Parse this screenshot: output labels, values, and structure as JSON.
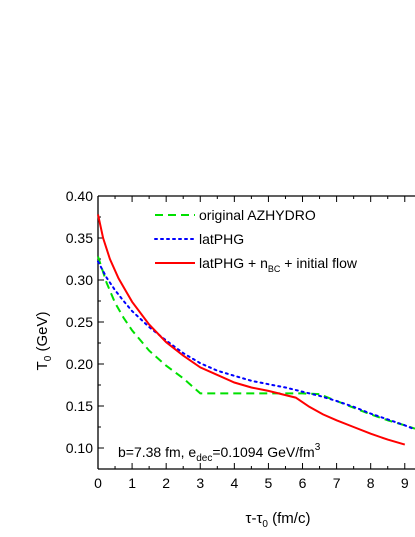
{
  "chart_data": {
    "type": "line",
    "x_axis": {
      "label_main": "τ-τ",
      "label_sub": "0",
      "label_tail": " (fm/c)",
      "range": [
        0,
        9.3
      ],
      "ticks": [
        0,
        1,
        2,
        3,
        4,
        5,
        6,
        7,
        8,
        9
      ],
      "tick_labels": [
        "0",
        "1",
        "2",
        "3",
        "4",
        "5",
        "6",
        "7",
        "8",
        "9"
      ]
    },
    "y_axis": {
      "label_main": "T",
      "label_sub": "0",
      "label_tail": " (GeV)",
      "range": [
        0.075,
        0.4
      ],
      "ticks": [
        0.1,
        0.15,
        0.2,
        0.25,
        0.3,
        0.35,
        0.4
      ],
      "tick_labels": [
        "0.10",
        "0.15",
        "0.20",
        "0.25",
        "0.30",
        "0.35",
        "0.40"
      ]
    },
    "grid": false,
    "legend_position": "top-right",
    "series": [
      {
        "name": "original AZHYDRO",
        "color": "#00e000",
        "style": "dashed",
        "x": [
          0,
          0.25,
          0.5,
          0.75,
          1.0,
          1.5,
          2.0,
          2.5,
          3.0,
          3.5,
          4.0,
          4.5,
          5.0,
          5.5,
          6.0,
          6.5,
          7.0,
          7.5,
          8.0,
          8.5,
          9.0,
          9.3
        ],
        "y": [
          0.328,
          0.297,
          0.273,
          0.255,
          0.24,
          0.216,
          0.198,
          0.183,
          0.165,
          0.165,
          0.165,
          0.165,
          0.165,
          0.165,
          0.165,
          0.164,
          0.156,
          0.148,
          0.14,
          0.133,
          0.127,
          0.123
        ]
      },
      {
        "name": "latPHG",
        "color": "#0000ff",
        "style": "dotted",
        "x": [
          0,
          0.25,
          0.5,
          0.75,
          1.0,
          1.5,
          2.0,
          2.5,
          3.0,
          3.5,
          4.0,
          4.5,
          5.0,
          5.5,
          6.0,
          6.5,
          7.0,
          7.5,
          8.0,
          8.5,
          9.0,
          9.3
        ],
        "y": [
          0.322,
          0.303,
          0.288,
          0.275,
          0.263,
          0.244,
          0.228,
          0.213,
          0.201,
          0.192,
          0.186,
          0.18,
          0.176,
          0.172,
          0.167,
          0.162,
          0.156,
          0.149,
          0.141,
          0.134,
          0.127,
          0.122
        ]
      },
      {
        "name": "latPHG + n_BC + initial flow",
        "color": "#ff0000",
        "style": "solid",
        "x": [
          0,
          0.15,
          0.35,
          0.6,
          1.0,
          1.5,
          2.0,
          2.5,
          3.0,
          3.5,
          4.0,
          4.5,
          5.0,
          5.5,
          5.8,
          6.2,
          6.6,
          7.0,
          7.5,
          8.0,
          8.5,
          9.0
        ],
        "y": [
          0.378,
          0.35,
          0.325,
          0.302,
          0.274,
          0.247,
          0.226,
          0.21,
          0.196,
          0.187,
          0.178,
          0.172,
          0.168,
          0.163,
          0.16,
          0.149,
          0.14,
          0.133,
          0.125,
          0.117,
          0.11,
          0.104
        ]
      }
    ],
    "legend": [
      {
        "text": "original AZHYDRO"
      },
      {
        "text": "latPHG"
      },
      {
        "text_pre": "latPHG + n",
        "text_sub": "BC",
        "text_post": " + initial flow"
      }
    ],
    "annotation": {
      "t1": "b=7.38 fm, e",
      "t1_sub": "dec",
      "t2": "=0.1094 GeV/fm",
      "t2_sup": "3"
    }
  }
}
